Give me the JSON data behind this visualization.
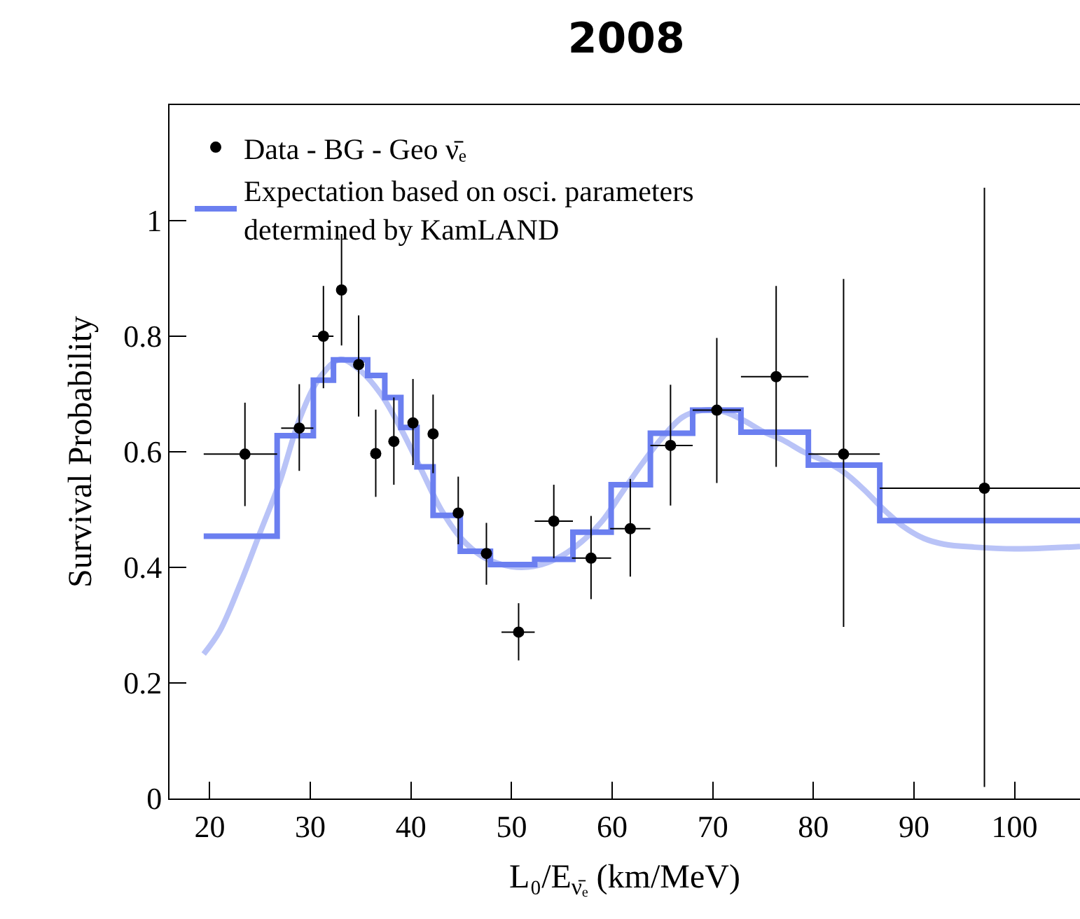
{
  "chart_data": {
    "type": "scatter",
    "title": "2008",
    "xlabel": "L₀/E$_{ν̄ₑ}$ (km/MeV)",
    "ylabel": "Survival Probability",
    "xlim": [
      16,
      106.5
    ],
    "ylim": [
      0,
      1.2
    ],
    "xticks": [
      20,
      30,
      40,
      50,
      60,
      70,
      80,
      90,
      100
    ],
    "yticks": [
      0,
      0.2,
      0.4,
      0.6,
      0.8,
      1
    ],
    "legend": "top left",
    "series": [
      {
        "name": "Data - BG - Geo ν̄ₑ",
        "marker": "circle",
        "color": "#000000",
        "x": [
          23.5,
          28.9,
          31.3,
          33.1,
          34.8,
          36.5,
          38.3,
          40.2,
          42.2,
          44.7,
          47.5,
          50.7,
          54.2,
          57.9,
          61.8,
          65.8,
          70.4,
          76.3,
          83.0,
          97.0
        ],
        "values": [
          0.596,
          0.641,
          0.8,
          0.88,
          0.751,
          0.597,
          0.618,
          0.65,
          0.631,
          0.494,
          0.424,
          0.288,
          0.48,
          0.416,
          0.467,
          0.611,
          0.672,
          0.73,
          0.596,
          0.537
        ],
        "errors": [
          [
            0.506,
            0.685
          ],
          [
            0.567,
            0.717
          ],
          [
            0.71,
            0.887
          ],
          [
            0.784,
            0.977
          ],
          [
            0.661,
            0.836
          ],
          [
            0.522,
            0.673
          ],
          [
            0.543,
            0.694
          ],
          [
            0.577,
            0.726
          ],
          [
            0.563,
            0.699
          ],
          [
            0.44,
            0.557
          ],
          [
            0.37,
            0.477
          ],
          [
            0.239,
            0.338
          ],
          [
            0.416,
            0.543
          ],
          [
            0.345,
            0.489
          ],
          [
            0.384,
            0.553
          ],
          [
            0.507,
            0.716
          ],
          [
            0.546,
            0.797
          ],
          [
            0.574,
            0.887
          ],
          [
            0.297,
            0.899
          ],
          [
            0.02,
            1.057
          ]
        ],
        "xerrors": [
          [
            19.4,
            26.7
          ],
          [
            27.1,
            30.3
          ],
          [
            30.2,
            32.3
          ],
          null,
          null,
          null,
          null,
          null,
          null,
          null,
          null,
          [
            49.0,
            52.3
          ],
          [
            52.3,
            56.1
          ],
          [
            56.0,
            59.9
          ],
          [
            59.8,
            63.8
          ],
          [
            63.8,
            68.0
          ],
          [
            68.0,
            72.8
          ],
          [
            72.8,
            79.5
          ],
          [
            79.5,
            86.6
          ],
          [
            86.6,
            106.5
          ]
        ]
      },
      {
        "name": "Expectation based on osci. parameters\ndetermined by KamLAND",
        "type": "step",
        "color": "#6b7ff0",
        "x": [
          19.4,
          26.7,
          30.3,
          32.3,
          35.7,
          37.4,
          39.0,
          40.6,
          42.2,
          44.9,
          47.9,
          52.3,
          56.1,
          59.9,
          63.8,
          68.0,
          72.8,
          79.5,
          86.6,
          106.5
        ],
        "values": [
          0.454,
          0.628,
          0.724,
          0.759,
          0.732,
          0.694,
          0.642,
          0.574,
          0.49,
          0.428,
          0.405,
          0.414,
          0.461,
          0.543,
          0.632,
          0.672,
          0.634,
          0.577,
          0.481,
          0.481
        ]
      },
      {
        "type": "line",
        "color": "#b9c3f7",
        "x": [
          19.4,
          21,
          23,
          25,
          27,
          29,
          31,
          33,
          35,
          37,
          39,
          41,
          43,
          45,
          47,
          49,
          51,
          53,
          55,
          57,
          59,
          61,
          63,
          65,
          67,
          69,
          71,
          73,
          75,
          77,
          79,
          81,
          83,
          85,
          87,
          89,
          91,
          93,
          96,
          100,
          106.5
        ],
        "values": [
          0.25,
          0.29,
          0.37,
          0.46,
          0.55,
          0.66,
          0.73,
          0.76,
          0.74,
          0.7,
          0.64,
          0.57,
          0.5,
          0.45,
          0.42,
          0.405,
          0.4,
          0.405,
          0.42,
          0.445,
          0.48,
          0.53,
          0.58,
          0.625,
          0.66,
          0.672,
          0.67,
          0.655,
          0.635,
          0.62,
          0.6,
          0.585,
          0.565,
          0.535,
          0.5,
          0.47,
          0.45,
          0.44,
          0.435,
          0.432,
          0.436
        ]
      }
    ]
  }
}
